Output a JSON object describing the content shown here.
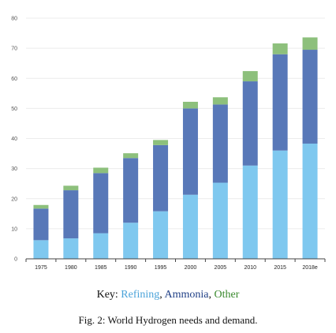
{
  "chart_data": {
    "type": "bar",
    "stacked": true,
    "categories": [
      "1975",
      "1980",
      "1985",
      "1990",
      "1995",
      "2000",
      "2005",
      "2010",
      "2015",
      "2018e"
    ],
    "series": [
      {
        "name": "Refining",
        "color": "#7fc8ef",
        "values": [
          6.2,
          6.8,
          8.5,
          12,
          15.8,
          21.3,
          25.3,
          31,
          36,
          38.3
        ]
      },
      {
        "name": "Ammonia",
        "color": "#5878b8",
        "values": [
          10.5,
          16,
          20,
          21.5,
          22,
          28.7,
          26,
          28,
          32,
          31.2
        ]
      },
      {
        "name": "Other",
        "color": "#8dc07c",
        "values": [
          1.2,
          1.5,
          1.8,
          1.6,
          1.7,
          2.2,
          2.4,
          3.4,
          3.6,
          4.1
        ]
      }
    ],
    "ylim": [
      0,
      80
    ],
    "yticks": [
      0,
      10,
      20,
      30,
      40,
      50,
      60,
      70,
      80
    ],
    "grid": true
  },
  "key": {
    "prefix": "Key: ",
    "items": [
      {
        "label": "Refining",
        "color": "#4ba3d9",
        "sep": ", "
      },
      {
        "label": "Ammonia",
        "color": "#1f3f86",
        "sep": ", "
      },
      {
        "label": "Other",
        "color": "#3a8a2e",
        "sep": ""
      }
    ]
  },
  "caption": "Fig. 2: World Hydrogen needs and demand."
}
